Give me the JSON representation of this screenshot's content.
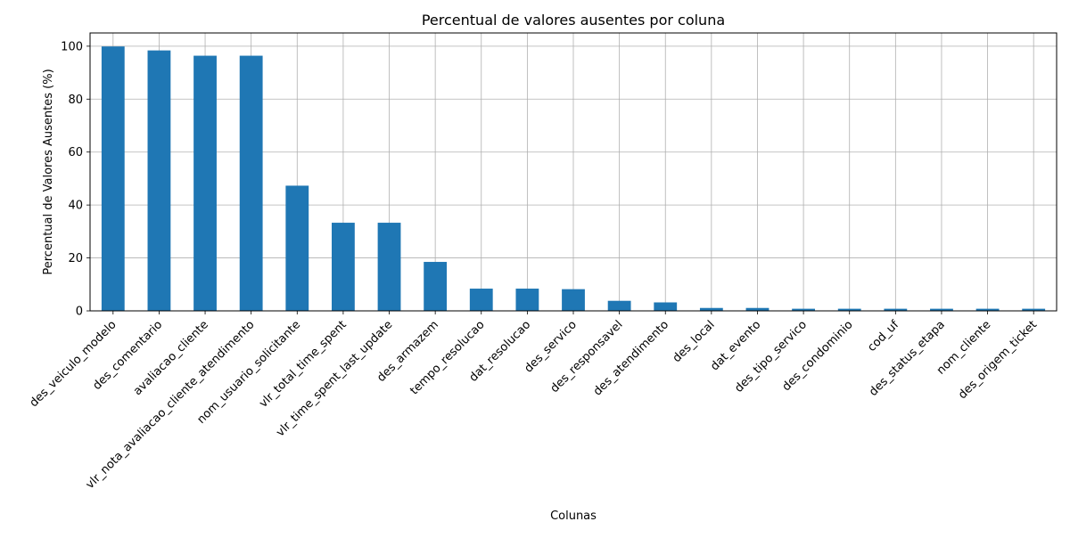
{
  "chart_data": {
    "type": "bar",
    "title": "Percentual de valores ausentes por coluna",
    "xlabel": "Colunas",
    "ylabel": "Percentual de Valores Ausentes (%)",
    "ylim": [
      0,
      105
    ],
    "yticks": [
      0,
      20,
      40,
      60,
      80,
      100
    ],
    "grid": true,
    "bar_color": "#1f77b4",
    "categories": [
      "des_veiculo_modelo",
      "des_comentario",
      "avaliacao_cliente",
      "vlr_nota_avaliacao_cliente_atendimento",
      "nom_usuario_solicitante",
      "vlr_total_time_spent",
      "vlr_time_spent_last_update",
      "des_armazem",
      "tempo_resolucao",
      "dat_resolucao",
      "des_servico",
      "des_responsavel",
      "des_atendimento",
      "des_local",
      "dat_evento",
      "des_tipo_servico",
      "des_condominio",
      "cod_uf",
      "des_status_etapa",
      "nom_cliente",
      "des_origem_ticket"
    ],
    "values": [
      99.9,
      98.4,
      96.4,
      96.4,
      47.3,
      33.3,
      33.3,
      18.5,
      8.4,
      8.4,
      8.2,
      3.8,
      3.2,
      1.1,
      1.1,
      0.8,
      0.8,
      0.8,
      0.8,
      0.8,
      0.8
    ]
  }
}
